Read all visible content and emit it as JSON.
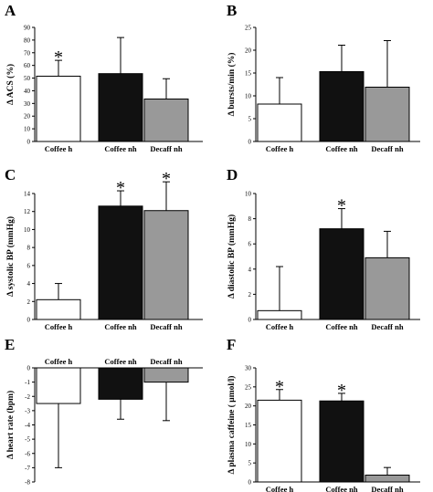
{
  "chart_data": [
    {
      "panel": "A",
      "type": "bar",
      "categories": [
        "Coffee h",
        "Coffee nh",
        "Decaff  nh"
      ],
      "values": [
        51.5,
        53.5,
        33.5
      ],
      "errors": [
        12.5,
        28.5,
        16
      ],
      "significant": [
        true,
        false,
        false
      ],
      "ylabel": "Δ ACS (%)",
      "ylim": [
        0,
        90
      ],
      "yticks": [
        0,
        10,
        20,
        30,
        40,
        50,
        60,
        70,
        80,
        90
      ],
      "colors": [
        "#ffffff",
        "#111111",
        "#999999"
      ]
    },
    {
      "panel": "B",
      "type": "bar",
      "categories": [
        "Coffee h",
        "Coffee nh",
        "Decaff  nh"
      ],
      "values": [
        8.2,
        15.3,
        11.9
      ],
      "errors": [
        5.8,
        5.8,
        10.2
      ],
      "significant": [
        false,
        false,
        false
      ],
      "ylabel": "Δ bursts/min (%)",
      "ylim": [
        0,
        25
      ],
      "yticks": [
        0,
        5,
        10,
        15,
        20,
        25
      ],
      "colors": [
        "#ffffff",
        "#111111",
        "#999999"
      ]
    },
    {
      "panel": "C",
      "type": "bar",
      "categories": [
        "Coffee h",
        "Coffee nh",
        "Decaff  nh"
      ],
      "values": [
        2.2,
        12.6,
        12.1
      ],
      "errors": [
        1.8,
        1.7,
        3.2
      ],
      "significant": [
        false,
        true,
        true
      ],
      "ylabel": "Δ systolic BP (mmHg)",
      "ylim": [
        0,
        14
      ],
      "yticks": [
        0,
        2,
        4,
        6,
        8,
        10,
        12,
        14
      ],
      "colors": [
        "#ffffff",
        "#111111",
        "#999999"
      ]
    },
    {
      "panel": "D",
      "type": "bar",
      "categories": [
        "Coffee h",
        "Coffee nh",
        "Decaff  nh"
      ],
      "values": [
        0.7,
        7.2,
        4.9
      ],
      "errors": [
        3.5,
        1.6,
        2.1
      ],
      "significant": [
        false,
        true,
        false
      ],
      "ylabel": "Δ diastolic BP (mmHg)",
      "ylim": [
        0,
        10
      ],
      "yticks": [
        0,
        2,
        4,
        6,
        8,
        10
      ],
      "colors": [
        "#ffffff",
        "#111111",
        "#999999"
      ]
    },
    {
      "panel": "E",
      "type": "bar",
      "categories": [
        "Coffee h",
        "Coffee nh",
        "Decaff  nh"
      ],
      "values": [
        -2.5,
        -2.2,
        -1.0
      ],
      "errors": [
        4.5,
        1.4,
        2.7
      ],
      "significant": [
        false,
        false,
        false
      ],
      "ylabel": "Δ heart rate  (bpm)",
      "ylim": [
        -8,
        0
      ],
      "yticks": [
        0,
        -1,
        -2,
        -3,
        -4,
        -5,
        -6,
        -7,
        -8
      ],
      "colors": [
        "#ffffff",
        "#111111",
        "#999999"
      ]
    },
    {
      "panel": "F",
      "type": "bar",
      "categories": [
        "Coffee h",
        "Coffee nh",
        "Decaff  nh"
      ],
      "values": [
        21.5,
        21.3,
        1.8
      ],
      "errors": [
        2.8,
        2.0,
        2.0
      ],
      "significant": [
        true,
        true,
        false
      ],
      "ylabel": "Δ plasma caffeine (  μmol/l)",
      "ylim": [
        0,
        30
      ],
      "yticks": [
        0,
        5,
        10,
        15,
        20,
        25,
        30
      ],
      "colors": [
        "#ffffff",
        "#111111",
        "#999999"
      ]
    }
  ],
  "significance_marker": "*"
}
